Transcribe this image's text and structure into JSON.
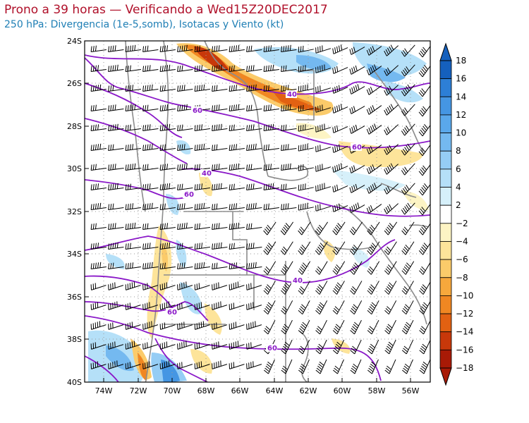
{
  "header": {
    "title": "Prono a 39 horas — Verificando a Wed15Z20DEC2017",
    "subtitle": "250 hPa: Divergencia (1e-5,somb), Isotacas y Viento (kt)"
  },
  "map": {
    "lat_labels": [
      "24S",
      "26S",
      "28S",
      "30S",
      "32S",
      "34S",
      "36S",
      "38S",
      "40S"
    ],
    "lon_labels": [
      "74W",
      "72W",
      "70W",
      "68W",
      "66W",
      "64W",
      "62W",
      "60W",
      "58W",
      "56W"
    ],
    "isotach_labels": [
      "40",
      "60",
      "60",
      "40",
      "60",
      "40",
      "60",
      "60"
    ]
  },
  "colorbar": {
    "labels": [
      "18",
      "16",
      "14",
      "12",
      "10",
      "8",
      "6",
      "4",
      "2",
      "−2",
      "−4",
      "−6",
      "−8",
      "−10",
      "−12",
      "−14",
      "−16",
      "−18"
    ],
    "colors": [
      "#1560bd",
      "#2d7fd6",
      "#4596e3",
      "#5aa8eb",
      "#74b9f0",
      "#95cdf5",
      "#b5e0f8",
      "#d6f0fa",
      "#ffffff",
      "#fdf4c4",
      "#fde49a",
      "#fbcb6a",
      "#f7a83c",
      "#f08722",
      "#e26112",
      "#c8380a",
      "#a81a06"
    ],
    "positive_colors_are": "blue (convergent to divergent scale)"
  }
}
